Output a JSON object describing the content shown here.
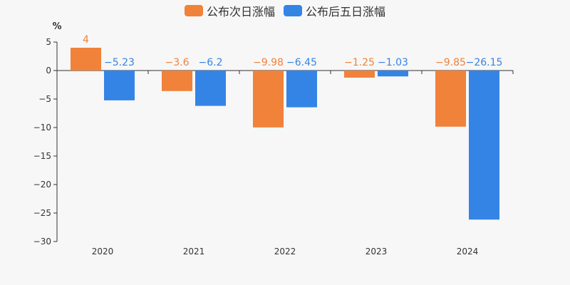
{
  "chart_data": {
    "type": "bar",
    "categories": [
      "2020",
      "2021",
      "2022",
      "2023",
      "2024"
    ],
    "series": [
      {
        "name": "公布次日涨幅",
        "values": [
          4,
          -3.6,
          -9.98,
          -1.25,
          -9.85
        ],
        "color": "#f0823a"
      },
      {
        "name": "公布后五日涨幅",
        "values": [
          -5.23,
          -6.2,
          -6.45,
          -1.03,
          -26.15
        ],
        "color": "#3484e6"
      }
    ],
    "data_labels": [
      [
        "4",
        "−3.6",
        "−9.98",
        "−1.25",
        "−9.85"
      ],
      [
        "−5.23",
        "−6.2",
        "−6.45",
        "−1.03",
        "−26.15"
      ]
    ],
    "ylabel": "%",
    "ylim": [
      -30,
      5
    ],
    "yticks": [
      5,
      0,
      -5,
      -10,
      -15,
      -20,
      -25,
      -30
    ],
    "ytick_labels": [
      "5",
      "0",
      "−5",
      "−10",
      "−15",
      "−20",
      "−25",
      "−30"
    ],
    "legend_position": "top-center",
    "grid": false
  }
}
